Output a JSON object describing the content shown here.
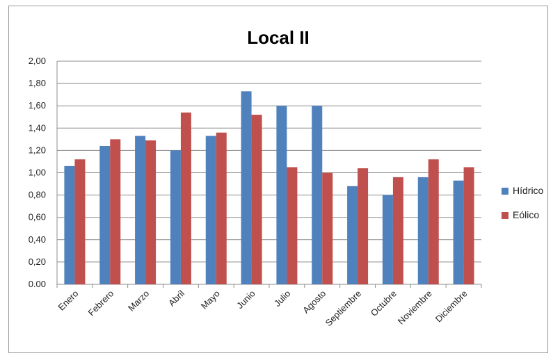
{
  "chart_data": {
    "type": "bar",
    "title": "Local II",
    "xlabel": "",
    "ylabel": "",
    "categories": [
      "Enero",
      "Febrero",
      "Marzo",
      "Abril",
      "Mayo",
      "Junio",
      "Julio",
      "Agosto",
      "Septiembre",
      "Octubre",
      "Noviembre",
      "Diciembre"
    ],
    "series": [
      {
        "name": "Hídrico",
        "color": "#4f81bd",
        "values": [
          1.06,
          1.24,
          1.33,
          1.2,
          1.33,
          1.73,
          1.6,
          1.6,
          0.88,
          0.8,
          0.96,
          0.93
        ]
      },
      {
        "name": "Eólico",
        "color": "#c0504d",
        "values": [
          1.12,
          1.3,
          1.29,
          1.54,
          1.36,
          1.52,
          1.05,
          1.0,
          1.04,
          0.96,
          1.12,
          1.05
        ]
      }
    ],
    "ylim": [
      0,
      2
    ],
    "yticks": [
      "0.00",
      "0,20",
      "0,40",
      "0,60",
      "0,80",
      "1,00",
      "1,20",
      "1,40",
      "1,60",
      "1,80",
      "2,00"
    ],
    "grid": true,
    "legend_position": "right"
  }
}
